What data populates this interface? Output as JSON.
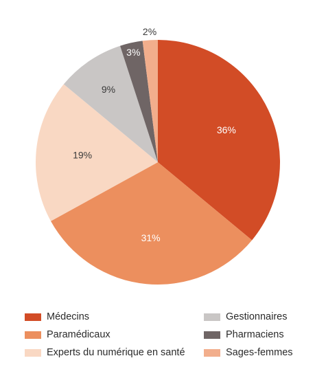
{
  "chart_data": {
    "type": "pie",
    "title": "",
    "start_angle_deg": 0,
    "direction": "clockwise",
    "slices": [
      {
        "label": "Médecins",
        "value": 36,
        "value_label": "36%",
        "color": "#D24C26",
        "label_color": "#ffffff"
      },
      {
        "label": "Paramédicaux",
        "value": 31,
        "value_label": "31%",
        "color": "#EC8F5E",
        "label_color": "#ffffff"
      },
      {
        "label": "Experts du numérique en santé",
        "value": 19,
        "value_label": "19%",
        "color": "#F9D8C3",
        "label_color": "#3a3a3a"
      },
      {
        "label": "Gestionnaires",
        "value": 9,
        "value_label": "9%",
        "color": "#C9C6C5",
        "label_color": "#3a3a3a"
      },
      {
        "label": "Pharmaciens",
        "value": 3,
        "value_label": "3%",
        "color": "#6F6565",
        "label_color": "#ffffff"
      },
      {
        "label": "Sages-femmes",
        "value": 2,
        "value_label": "2%",
        "color": "#F2AE8C",
        "label_color": "#3a3a3a"
      }
    ],
    "legend": {
      "placement": "bottom",
      "columns": [
        [
          "Médecins",
          "Paramédicaux",
          "Experts du numérique en santé"
        ],
        [
          "Gestionnaires",
          "Pharmaciens",
          "Sages-femmes"
        ]
      ]
    }
  }
}
